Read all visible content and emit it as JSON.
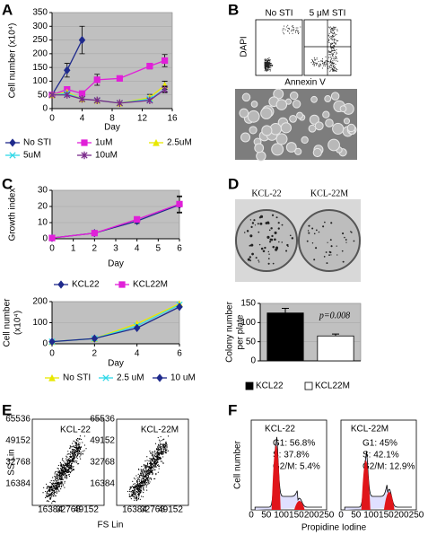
{
  "panel_labels": [
    "A",
    "B",
    "C",
    "D",
    "E",
    "F"
  ],
  "chart_data": [
    {
      "type": "line",
      "ylabel": "Cell number (x10⁴)",
      "xlabel": "Day",
      "xlim": [
        0,
        16
      ],
      "xticks": [
        0,
        4,
        8,
        12,
        16
      ],
      "ylim": [
        0,
        350
      ],
      "yticks": [
        0,
        50,
        100,
        150,
        200,
        250,
        300,
        350
      ],
      "grid": true,
      "series": [
        {
          "name": "No STI",
          "color": "#1f2a8c",
          "marker": "diamond",
          "x": [
            0,
            2,
            4
          ],
          "values": [
            50,
            140,
            250
          ],
          "errors": [
            null,
            25,
            50
          ]
        },
        {
          "name": "1uM",
          "color": "#e020d8",
          "marker": "square",
          "x": [
            0,
            2,
            4,
            6,
            9,
            13,
            15
          ],
          "values": [
            50,
            70,
            55,
            105,
            110,
            155,
            175
          ],
          "errors": [
            null,
            10,
            null,
            20,
            null,
            10,
            22
          ]
        },
        {
          "name": "2.5uM",
          "color": "#e8e800",
          "marker": "triangle",
          "x": [
            0,
            2,
            4,
            6,
            9,
            13,
            15
          ],
          "values": [
            50,
            60,
            35,
            30,
            20,
            40,
            85
          ],
          "errors": [
            null,
            null,
            null,
            null,
            null,
            12,
            15
          ]
        },
        {
          "name": "5uM",
          "color": "#30d8e8",
          "marker": "cross",
          "x": [
            0,
            2,
            4,
            6,
            9,
            13,
            15
          ],
          "values": [
            50,
            55,
            35,
            30,
            20,
            35,
            70
          ],
          "errors": [
            null,
            null,
            null,
            null,
            null,
            null,
            12
          ]
        },
        {
          "name": "10uM",
          "color": "#7a2a8a",
          "marker": "asterisk",
          "x": [
            0,
            2,
            4,
            6,
            9,
            13,
            15
          ],
          "values": [
            50,
            50,
            35,
            30,
            20,
            30,
            70
          ],
          "errors": [
            null,
            null,
            null,
            null,
            null,
            null,
            10
          ]
        }
      ]
    },
    {
      "type": "line",
      "ylabel": "Growth index",
      "xlabel": "Day",
      "xlim": [
        0,
        6
      ],
      "xticks": [
        0,
        1,
        2,
        3,
        4,
        5,
        6
      ],
      "ylim": [
        0,
        30
      ],
      "yticks": [
        0,
        10,
        20,
        30
      ],
      "grid": true,
      "series": [
        {
          "name": "KCL22",
          "color": "#1f2a8c",
          "marker": "diamond",
          "x": [
            0,
            2,
            4,
            6
          ],
          "values": [
            0.5,
            3.5,
            11,
            21
          ],
          "errors": [
            null,
            null,
            1.5,
            5
          ]
        },
        {
          "name": "KCL22M",
          "color": "#e020d8",
          "marker": "square",
          "x": [
            0,
            2,
            4,
            6
          ],
          "values": [
            0.5,
            3.5,
            12,
            21.5
          ],
          "errors": [
            null,
            null,
            1.5,
            5
          ]
        }
      ]
    },
    {
      "type": "line",
      "ylabel": [
        "Cell number",
        "(x10⁴)"
      ],
      "xlabel": "Day",
      "xlim": [
        0,
        6
      ],
      "xticks": [
        0,
        2,
        4,
        6
      ],
      "ylim": [
        0,
        200
      ],
      "yticks": [
        0,
        100,
        200
      ],
      "grid": true,
      "series": [
        {
          "name": "No STI",
          "color": "#e8e800",
          "marker": "triangle",
          "x": [
            0,
            2,
            4,
            6
          ],
          "values": [
            10,
            25,
            95,
            190
          ],
          "errors": [
            null,
            null,
            null,
            null
          ]
        },
        {
          "name": "2.5 uM",
          "color": "#30d8e8",
          "marker": "cross",
          "x": [
            0,
            2,
            4,
            6
          ],
          "values": [
            10,
            25,
            85,
            185
          ],
          "errors": [
            null,
            null,
            null,
            null
          ]
        },
        {
          "name": "10 uM",
          "color": "#1f2a8c",
          "marker": "diamond",
          "x": [
            0,
            2,
            4,
            6
          ],
          "values": [
            10,
            25,
            75,
            175
          ],
          "errors": [
            null,
            null,
            null,
            null
          ]
        }
      ]
    },
    {
      "type": "bar",
      "ylabel": [
        "Colony number",
        "per plate"
      ],
      "categories": [
        "KCL22",
        "KCL22M"
      ],
      "values": [
        125,
        65
      ],
      "errors": [
        12,
        5
      ],
      "colors": [
        "#000000",
        "#ffffff"
      ],
      "ylim": [
        0,
        150
      ],
      "yticks": [
        0,
        50,
        100,
        150
      ],
      "grid": true,
      "annotation": "p=0.008"
    }
  ],
  "flow_b": {
    "left": "No STI",
    "right": "5 μM STI",
    "ylabel": "DAPI",
    "xlabel": "Annexin V"
  },
  "dishes": {
    "left": "KCL-22",
    "right": "KCL-22M"
  },
  "flow_e": {
    "left": "KCL-22",
    "right": "KCL-22M",
    "ylabel": "SS Lin",
    "xlabel": "FS Lin",
    "ticks": [
      16384,
      32768,
      49152,
      65536
    ]
  },
  "cell_cycle": {
    "ylabel": "Cell number",
    "xlabel": "Propidine Iodine",
    "xticks": [
      0,
      50,
      100,
      150,
      200,
      250
    ],
    "plots": [
      {
        "title": "KCL-22",
        "lines": [
          "G1: 56.8%",
          "S:  37.8%",
          "G2/M: 5.4%"
        ]
      },
      {
        "title": "KCL-22M",
        "lines": [
          "G1: 45%",
          "S:  42.1%",
          "G2/M: 12.9%"
        ]
      }
    ]
  }
}
